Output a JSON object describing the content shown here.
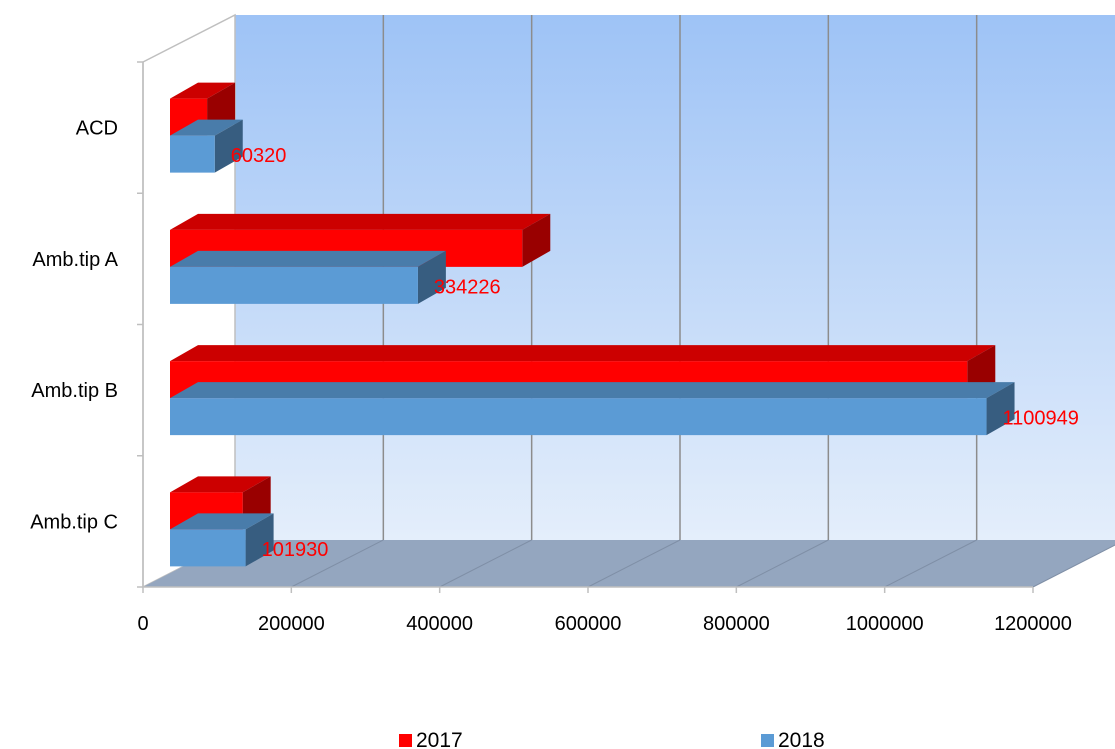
{
  "chart_data": {
    "type": "bar",
    "orientation": "horizontal",
    "style": "3d",
    "categories": [
      "ACD",
      "Amb.tip A",
      "Amb.tip B",
      "Amb.tip C"
    ],
    "series": [
      {
        "name": "2017",
        "color": "#ff0000",
        "values": [
          50000,
          475000,
          1075000,
          98000
        ]
      },
      {
        "name": "2018",
        "color": "#5b9bd5",
        "values": [
          60320,
          334226,
          1100949,
          101930
        ]
      }
    ],
    "data_labels": {
      "series": "2018",
      "color": "#ff0000",
      "values": [
        "60320",
        "334226",
        "1100949",
        "101930"
      ]
    },
    "x_ticks": [
      "0",
      "200000",
      "400000",
      "600000",
      "800000",
      "1000000",
      "1200000"
    ],
    "xlim": [
      0,
      1200000
    ],
    "grid": true,
    "legend_position": "bottom",
    "colors": {
      "wall_top": "#9ec3f6",
      "wall_bottom": "#e4eefb",
      "floor": "#94a6bf",
      "gridline": "#8c8c8c"
    }
  }
}
